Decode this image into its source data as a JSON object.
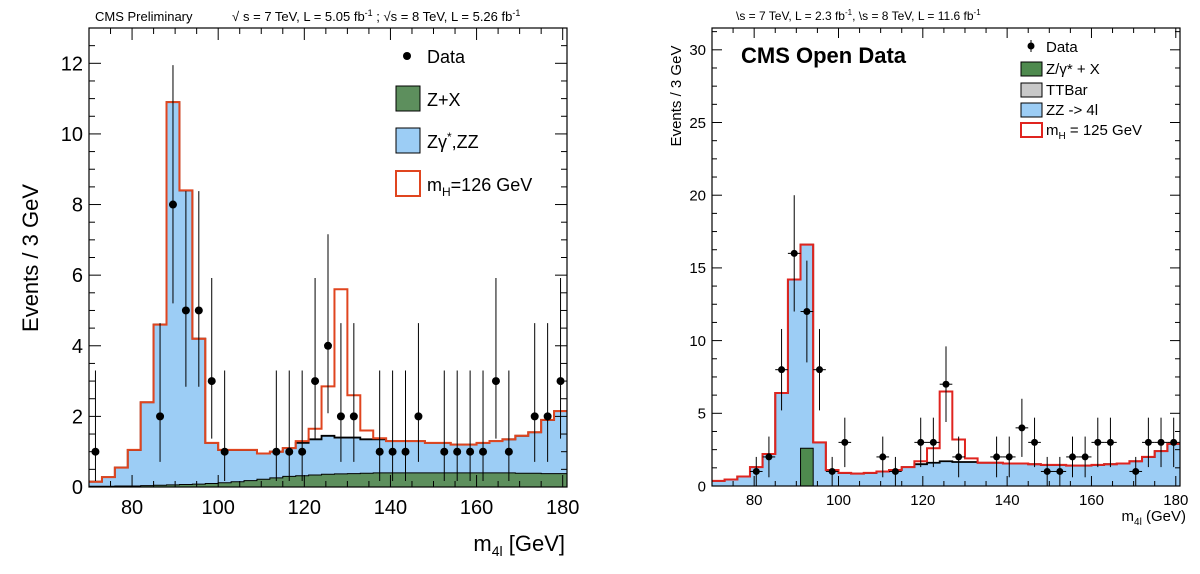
{
  "chart_data": [
    {
      "type": "histogram",
      "header_left": "CMS Preliminary",
      "header_sqrt1": "s",
      "header_part1": " = 7 TeV, L = 5.05 fb",
      "header_exp1": "-1",
      "header_sep": " ; ",
      "header_sqrt2": "s",
      "header_part2": " = 8 TeV, L = 5.26 fb",
      "header_exp2": "-1",
      "xlabel_main": "m",
      "xlabel_sub": "4l",
      "xlabel_rest": " [GeV]",
      "ylabel": "Events / 3 GeV",
      "xlim": [
        70,
        181
      ],
      "ylim": [
        0,
        13
      ],
      "x_ticks": [
        80,
        100,
        120,
        140,
        160,
        180
      ],
      "y_ticks": [
        0,
        2,
        4,
        6,
        8,
        10,
        12
      ],
      "bin_edges": [
        70,
        73,
        76,
        79,
        82,
        85,
        88,
        91,
        94,
        97,
        100,
        103,
        106,
        109,
        112,
        115,
        118,
        121,
        124,
        127,
        130,
        133,
        136,
        139,
        142,
        145,
        148,
        151,
        154,
        157,
        160,
        163,
        166,
        169,
        172,
        175,
        178,
        181
      ],
      "series": [
        {
          "name": "Z+X",
          "color": "#5d8f5d",
          "values": [
            0.02,
            0.02,
            0.03,
            0.03,
            0.04,
            0.05,
            0.06,
            0.07,
            0.08,
            0.1,
            0.12,
            0.15,
            0.18,
            0.22,
            0.26,
            0.3,
            0.32,
            0.34,
            0.36,
            0.37,
            0.38,
            0.39,
            0.4,
            0.4,
            0.4,
            0.4,
            0.4,
            0.4,
            0.4,
            0.4,
            0.4,
            0.4,
            0.4,
            0.39,
            0.39,
            0.38,
            0.38
          ]
        },
        {
          "name_main": "Zγ",
          "name_sup": "*",
          "name_rest": ",ZZ",
          "color": "#9ccdf5",
          "stack_total": [
            0.15,
            0.28,
            0.55,
            1.05,
            2.4,
            4.6,
            10.9,
            8.4,
            4.2,
            1.25,
            1.05,
            1.05,
            1.05,
            0.95,
            1.0,
            1.1,
            1.25,
            1.35,
            1.45,
            1.4,
            1.4,
            1.35,
            1.35,
            1.3,
            1.3,
            1.3,
            1.25,
            1.25,
            1.2,
            1.2,
            1.25,
            1.3,
            1.35,
            1.45,
            1.55,
            1.9,
            2.15
          ]
        },
        {
          "name_main": "m",
          "name_sub": "H",
          "name_rest": "=126 GeV",
          "color": "#e0451f",
          "stack_total": [
            0.15,
            0.28,
            0.55,
            1.05,
            2.4,
            4.6,
            10.9,
            8.4,
            4.2,
            1.25,
            1.05,
            1.05,
            1.05,
            0.95,
            1.0,
            1.1,
            1.3,
            1.65,
            2.85,
            5.6,
            2.6,
            1.6,
            1.38,
            1.3,
            1.3,
            1.3,
            1.25,
            1.25,
            1.2,
            1.2,
            1.25,
            1.3,
            1.35,
            1.45,
            1.55,
            1.9,
            2.15
          ]
        }
      ],
      "data_points": [
        {
          "x": 71.5,
          "y": 1,
          "lo": 0.83,
          "hi": 2.3
        },
        {
          "x": 86.5,
          "y": 2,
          "lo": 1.29,
          "hi": 2.64
        },
        {
          "x": 89.5,
          "y": 8,
          "lo": 2.8,
          "hi": 3.95
        },
        {
          "x": 92.5,
          "y": 5,
          "lo": 2.16,
          "hi": 3.38
        },
        {
          "x": 95.5,
          "y": 5,
          "lo": 2.16,
          "hi": 3.38
        },
        {
          "x": 98.5,
          "y": 3,
          "lo": 1.63,
          "hi": 2.92
        },
        {
          "x": 101.5,
          "y": 1,
          "lo": 0.83,
          "hi": 2.3
        },
        {
          "x": 113.5,
          "y": 1,
          "lo": 0.83,
          "hi": 2.3
        },
        {
          "x": 116.5,
          "y": 1,
          "lo": 0.83,
          "hi": 2.3
        },
        {
          "x": 119.5,
          "y": 1,
          "lo": 0.83,
          "hi": 2.3
        },
        {
          "x": 122.5,
          "y": 3,
          "lo": 1.63,
          "hi": 2.92
        },
        {
          "x": 125.5,
          "y": 4,
          "lo": 1.91,
          "hi": 3.16
        },
        {
          "x": 128.5,
          "y": 2,
          "lo": 1.29,
          "hi": 2.64
        },
        {
          "x": 131.5,
          "y": 2,
          "lo": 1.29,
          "hi": 2.64
        },
        {
          "x": 137.5,
          "y": 1,
          "lo": 0.83,
          "hi": 2.3
        },
        {
          "x": 140.5,
          "y": 1,
          "lo": 0.83,
          "hi": 2.3
        },
        {
          "x": 143.5,
          "y": 1,
          "lo": 0.83,
          "hi": 2.3
        },
        {
          "x": 146.5,
          "y": 2,
          "lo": 1.29,
          "hi": 2.64
        },
        {
          "x": 152.5,
          "y": 1,
          "lo": 0.83,
          "hi": 2.3
        },
        {
          "x": 155.5,
          "y": 1,
          "lo": 0.83,
          "hi": 2.3
        },
        {
          "x": 158.5,
          "y": 1,
          "lo": 0.83,
          "hi": 2.3
        },
        {
          "x": 161.5,
          "y": 1,
          "lo": 0.83,
          "hi": 2.3
        },
        {
          "x": 164.5,
          "y": 3,
          "lo": 1.63,
          "hi": 2.92
        },
        {
          "x": 167.5,
          "y": 1,
          "lo": 0.83,
          "hi": 2.3
        },
        {
          "x": 173.5,
          "y": 2,
          "lo": 1.29,
          "hi": 2.64
        },
        {
          "x": 176.5,
          "y": 2,
          "lo": 1.29,
          "hi": 2.64
        },
        {
          "x": 179.5,
          "y": 3,
          "lo": 1.63,
          "hi": 2.92
        }
      ],
      "legend": {
        "data_label": "Data",
        "placement": "top-right"
      }
    },
    {
      "type": "histogram",
      "header_sqrt1": "s",
      "header_part1": " = 7 TeV, L = 2.3 fb",
      "header_exp1": "-1",
      "header_sep": ", ",
      "header_sqrt2": "s",
      "header_part2": " = 8 TeV, L = 11.6 fb",
      "header_exp2": "-1",
      "title": "CMS Open Data",
      "xlabel_main": "m",
      "xlabel_sub": "4l",
      "xlabel_rest": " (GeV)",
      "ylabel": "Events / 3 GeV",
      "xlim": [
        70,
        181
      ],
      "ylim": [
        0,
        31.5
      ],
      "x_ticks": [
        80,
        100,
        120,
        140,
        160,
        180
      ],
      "y_ticks": [
        0,
        5,
        10,
        15,
        20,
        25,
        30
      ],
      "bin_edges": [
        70,
        73,
        76,
        79,
        82,
        85,
        88,
        91,
        94,
        97,
        100,
        103,
        106,
        109,
        112,
        115,
        118,
        121,
        124,
        127,
        130,
        133,
        136,
        139,
        142,
        145,
        148,
        151,
        154,
        157,
        160,
        163,
        166,
        169,
        172,
        175,
        178,
        181
      ],
      "series": [
        {
          "name": "Z/γ* + X",
          "color": "#4e8a4e",
          "values": [
            0,
            0,
            0,
            0,
            0,
            0,
            0,
            2.6,
            0,
            0,
            0,
            0,
            0,
            0,
            0,
            0,
            0,
            0,
            0,
            0,
            0,
            0,
            0,
            0,
            0,
            0,
            0,
            0,
            0,
            0,
            0,
            0,
            0,
            0,
            0,
            0,
            0
          ]
        },
        {
          "name": "TTBar",
          "color": "#c8c8c8",
          "values": [
            0,
            0,
            0,
            0,
            0,
            0,
            0,
            0,
            0,
            0,
            0,
            0,
            0,
            0,
            0,
            0,
            0,
            0,
            0,
            0,
            0,
            0,
            0,
            0,
            0,
            0,
            0,
            0,
            0,
            0,
            0,
            0,
            0,
            0,
            0,
            0,
            0
          ]
        },
        {
          "name": "ZZ -> 4l",
          "color": "#9ccdf5",
          "stack_total": [
            0.35,
            0.45,
            0.65,
            1.3,
            2.2,
            6.4,
            14.2,
            16.6,
            3.0,
            1.1,
            0.9,
            0.85,
            0.9,
            1.0,
            1.1,
            1.3,
            1.5,
            1.6,
            1.7,
            1.65,
            1.65,
            1.6,
            1.6,
            1.55,
            1.55,
            1.5,
            1.45,
            1.45,
            1.4,
            1.4,
            1.45,
            1.5,
            1.55,
            1.7,
            2.0,
            2.4,
            2.9
          ]
        },
        {
          "name_main": "m",
          "name_sub": "H",
          "name_rest": " = 125 GeV",
          "color": "#e0241f",
          "stack_total": [
            0.35,
            0.45,
            0.65,
            1.3,
            2.2,
            6.4,
            14.2,
            16.6,
            3.0,
            1.1,
            0.9,
            0.85,
            0.9,
            1.0,
            1.1,
            1.3,
            1.7,
            2.6,
            6.5,
            3.2,
            1.9,
            1.6,
            1.6,
            1.55,
            1.55,
            1.5,
            1.45,
            1.45,
            1.4,
            1.4,
            1.45,
            1.5,
            1.55,
            1.7,
            2.0,
            2.4,
            2.9
          ]
        }
      ],
      "data_points": [
        {
          "x": 80.5,
          "y": 1,
          "lo": 1.0,
          "hi": 1.0
        },
        {
          "x": 83.5,
          "y": 2,
          "lo": 1.4,
          "hi": 1.4
        },
        {
          "x": 86.5,
          "y": 8,
          "lo": 2.8,
          "hi": 2.8
        },
        {
          "x": 89.5,
          "y": 16,
          "lo": 4.0,
          "hi": 4.0
        },
        {
          "x": 92.5,
          "y": 12,
          "lo": 3.5,
          "hi": 3.5
        },
        {
          "x": 95.5,
          "y": 8,
          "lo": 2.8,
          "hi": 2.8
        },
        {
          "x": 98.5,
          "y": 1,
          "lo": 1.0,
          "hi": 1.0
        },
        {
          "x": 101.5,
          "y": 3,
          "lo": 1.7,
          "hi": 1.7
        },
        {
          "x": 110.5,
          "y": 2,
          "lo": 1.4,
          "hi": 1.4
        },
        {
          "x": 113.5,
          "y": 1,
          "lo": 1.0,
          "hi": 1.0
        },
        {
          "x": 119.5,
          "y": 3,
          "lo": 1.7,
          "hi": 1.7
        },
        {
          "x": 122.5,
          "y": 3,
          "lo": 1.7,
          "hi": 1.7
        },
        {
          "x": 125.5,
          "y": 7,
          "lo": 2.6,
          "hi": 2.6
        },
        {
          "x": 128.5,
          "y": 2,
          "lo": 1.4,
          "hi": 1.4
        },
        {
          "x": 137.5,
          "y": 2,
          "lo": 1.4,
          "hi": 1.4
        },
        {
          "x": 140.5,
          "y": 2,
          "lo": 1.4,
          "hi": 1.4
        },
        {
          "x": 143.5,
          "y": 4,
          "lo": 2.0,
          "hi": 2.0
        },
        {
          "x": 146.5,
          "y": 3,
          "lo": 1.7,
          "hi": 1.7
        },
        {
          "x": 149.5,
          "y": 1,
          "lo": 1.0,
          "hi": 1.0
        },
        {
          "x": 152.5,
          "y": 1,
          "lo": 1.0,
          "hi": 1.0
        },
        {
          "x": 155.5,
          "y": 2,
          "lo": 1.4,
          "hi": 1.4
        },
        {
          "x": 158.5,
          "y": 2,
          "lo": 1.4,
          "hi": 1.4
        },
        {
          "x": 161.5,
          "y": 3,
          "lo": 1.7,
          "hi": 1.7
        },
        {
          "x": 164.5,
          "y": 3,
          "lo": 1.7,
          "hi": 1.7
        },
        {
          "x": 170.5,
          "y": 1,
          "lo": 1.0,
          "hi": 1.0
        },
        {
          "x": 173.5,
          "y": 3,
          "lo": 1.7,
          "hi": 1.7
        },
        {
          "x": 176.5,
          "y": 3,
          "lo": 1.7,
          "hi": 1.7
        },
        {
          "x": 179.5,
          "y": 3,
          "lo": 1.7,
          "hi": 1.7
        }
      ],
      "legend": {
        "data_label": "Data",
        "placement": "top-right"
      }
    }
  ]
}
